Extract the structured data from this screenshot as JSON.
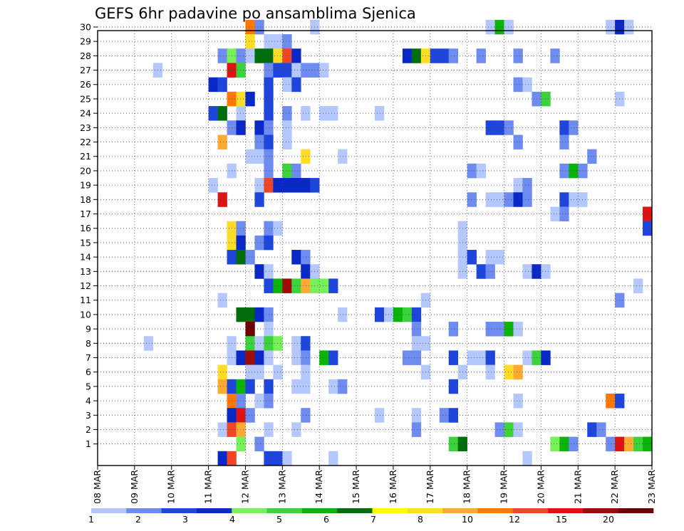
{
  "chart_data": {
    "type": "heatmap",
    "title": "GEFS 6hr padavine po ansamblima Sjenica",
    "xlabel": "",
    "ylabel": "",
    "x_ticks": [
      "08 MAR",
      "09 MAR",
      "10 MAR",
      "11 MAR",
      "12 MAR",
      "13 MAR",
      "14 MAR",
      "15 MAR",
      "16 MAR",
      "17 MAR",
      "18 MAR",
      "19 MAR",
      "20 MAR",
      "21 MAR",
      "22 MAR",
      "23 MAR"
    ],
    "x_range_days": [
      0,
      15
    ],
    "time_step_hours": 6,
    "y_ticks": [
      1,
      2,
      3,
      4,
      5,
      6,
      7,
      8,
      9,
      10,
      11,
      12,
      13,
      14,
      15,
      16,
      17,
      18,
      19,
      20,
      21,
      22,
      23,
      24,
      25,
      26,
      27,
      28,
      29,
      30
    ],
    "y_range": [
      0,
      30
    ],
    "grid": "dotted",
    "colorbar": {
      "labels": [
        "1",
        "2",
        "3",
        "4",
        "5",
        "6",
        "7",
        "8",
        "10",
        "12",
        "15",
        "20"
      ],
      "colors": [
        "#b4c8ff",
        "#6e8cf0",
        "#1e46dc",
        "#0a28c8",
        "#78f05a",
        "#3cd23c",
        "#0ab40a",
        "#006e0a",
        "#ffff00",
        "#ffdc28",
        "#ffaa32",
        "#ff7800",
        "#f04628",
        "#dc1414",
        "#a00a0a",
        "#6e0000"
      ]
    },
    "cells": [
      [
        30,
        16,
        12
      ],
      [
        30,
        17,
        2
      ],
      [
        30,
        23,
        1
      ],
      [
        30,
        42,
        1
      ],
      [
        30,
        43,
        7
      ],
      [
        30,
        44,
        1
      ],
      [
        30,
        55,
        1
      ],
      [
        30,
        56,
        4
      ],
      [
        30,
        57,
        1
      ],
      [
        29,
        16,
        10
      ],
      [
        29,
        18,
        1
      ],
      [
        29,
        19,
        1
      ],
      [
        29,
        20,
        2
      ],
      [
        28,
        13,
        2
      ],
      [
        28,
        14,
        5
      ],
      [
        28,
        15,
        2
      ],
      [
        28,
        16,
        1
      ],
      [
        28,
        17,
        8
      ],
      [
        28,
        18,
        8
      ],
      [
        28,
        19,
        10
      ],
      [
        28,
        20,
        13
      ],
      [
        28,
        21,
        4
      ],
      [
        28,
        33,
        4
      ],
      [
        28,
        34,
        8
      ],
      [
        28,
        35,
        10
      ],
      [
        28,
        36,
        3
      ],
      [
        28,
        37,
        3
      ],
      [
        28,
        38,
        2
      ],
      [
        28,
        41,
        2
      ],
      [
        28,
        45,
        2
      ],
      [
        28,
        49,
        2
      ],
      [
        27,
        6,
        1
      ],
      [
        27,
        14,
        14
      ],
      [
        27,
        15,
        6
      ],
      [
        27,
        18,
        2
      ],
      [
        27,
        19,
        3
      ],
      [
        27,
        20,
        3
      ],
      [
        27,
        21,
        1
      ],
      [
        27,
        22,
        2
      ],
      [
        27,
        23,
        2
      ],
      [
        27,
        24,
        1
      ],
      [
        26,
        12,
        4
      ],
      [
        26,
        13,
        3
      ],
      [
        26,
        18,
        3
      ],
      [
        26,
        20,
        1
      ],
      [
        26,
        21,
        3
      ],
      [
        26,
        45,
        2
      ],
      [
        26,
        46,
        1
      ],
      [
        25,
        14,
        12
      ],
      [
        25,
        15,
        10
      ],
      [
        25,
        16,
        4
      ],
      [
        25,
        18,
        3
      ],
      [
        25,
        47,
        2
      ],
      [
        25,
        48,
        6
      ],
      [
        25,
        56,
        1
      ],
      [
        24,
        12,
        3
      ],
      [
        24,
        13,
        8
      ],
      [
        24,
        15,
        1
      ],
      [
        24,
        18,
        3
      ],
      [
        24,
        20,
        2
      ],
      [
        24,
        22,
        1
      ],
      [
        24,
        24,
        1
      ],
      [
        24,
        25,
        1
      ],
      [
        24,
        30,
        1
      ],
      [
        23,
        14,
        2
      ],
      [
        23,
        15,
        4
      ],
      [
        23,
        17,
        4
      ],
      [
        23,
        18,
        2
      ],
      [
        23,
        20,
        1
      ],
      [
        23,
        42,
        3
      ],
      [
        23,
        43,
        3
      ],
      [
        23,
        44,
        2
      ],
      [
        23,
        50,
        3
      ],
      [
        23,
        51,
        2
      ],
      [
        22,
        13,
        11
      ],
      [
        22,
        17,
        2
      ],
      [
        22,
        18,
        3
      ],
      [
        22,
        20,
        1
      ],
      [
        22,
        45,
        2
      ],
      [
        22,
        50,
        2
      ],
      [
        21,
        16,
        1
      ],
      [
        21,
        17,
        1
      ],
      [
        21,
        18,
        2
      ],
      [
        21,
        22,
        10
      ],
      [
        21,
        26,
        1
      ],
      [
        21,
        53,
        2
      ],
      [
        20,
        14,
        1
      ],
      [
        20,
        18,
        2
      ],
      [
        20,
        20,
        6
      ],
      [
        20,
        21,
        2
      ],
      [
        20,
        40,
        2
      ],
      [
        20,
        41,
        1
      ],
      [
        20,
        50,
        2
      ],
      [
        20,
        51,
        7
      ],
      [
        20,
        52,
        2
      ],
      [
        19,
        12,
        1
      ],
      [
        19,
        17,
        1
      ],
      [
        19,
        18,
        13
      ],
      [
        19,
        19,
        4
      ],
      [
        19,
        20,
        4
      ],
      [
        19,
        21,
        4
      ],
      [
        19,
        22,
        4
      ],
      [
        19,
        23,
        3
      ],
      [
        19,
        45,
        1
      ],
      [
        19,
        46,
        2
      ],
      [
        18,
        13,
        14
      ],
      [
        18,
        17,
        3
      ],
      [
        18,
        40,
        2
      ],
      [
        18,
        42,
        1
      ],
      [
        18,
        43,
        1
      ],
      [
        18,
        44,
        2
      ],
      [
        18,
        45,
        4
      ],
      [
        18,
        46,
        2
      ],
      [
        18,
        50,
        3
      ],
      [
        18,
        51,
        1
      ],
      [
        18,
        52,
        1
      ],
      [
        17,
        49,
        1
      ],
      [
        17,
        50,
        2
      ],
      [
        17,
        59,
        14
      ],
      [
        16,
        14,
        10
      ],
      [
        16,
        15,
        2
      ],
      [
        16,
        18,
        2
      ],
      [
        16,
        19,
        1
      ],
      [
        16,
        39,
        1
      ],
      [
        16,
        59,
        3
      ],
      [
        15,
        14,
        10
      ],
      [
        15,
        15,
        4
      ],
      [
        15,
        17,
        2
      ],
      [
        15,
        18,
        3
      ],
      [
        15,
        39,
        1
      ],
      [
        14,
        14,
        3
      ],
      [
        14,
        15,
        8
      ],
      [
        14,
        16,
        2
      ],
      [
        14,
        21,
        4
      ],
      [
        14,
        22,
        2
      ],
      [
        14,
        39,
        1
      ],
      [
        14,
        40,
        3
      ],
      [
        14,
        42,
        1
      ],
      [
        14,
        43,
        1
      ],
      [
        13,
        17,
        4
      ],
      [
        13,
        18,
        1
      ],
      [
        13,
        22,
        4
      ],
      [
        13,
        23,
        1
      ],
      [
        13,
        39,
        1
      ],
      [
        13,
        41,
        3
      ],
      [
        13,
        42,
        2
      ],
      [
        13,
        46,
        1
      ],
      [
        13,
        47,
        4
      ],
      [
        13,
        48,
        1
      ],
      [
        12,
        18,
        3
      ],
      [
        12,
        19,
        7
      ],
      [
        12,
        20,
        15
      ],
      [
        12,
        21,
        6
      ],
      [
        12,
        22,
        11
      ],
      [
        12,
        23,
        5
      ],
      [
        12,
        24,
        5
      ],
      [
        12,
        25,
        3
      ],
      [
        12,
        58,
        1
      ],
      [
        11,
        13,
        1
      ],
      [
        11,
        35,
        1
      ],
      [
        11,
        56,
        2
      ],
      [
        10,
        15,
        8
      ],
      [
        10,
        16,
        8
      ],
      [
        10,
        17,
        4
      ],
      [
        10,
        18,
        2
      ],
      [
        10,
        26,
        1
      ],
      [
        10,
        30,
        3
      ],
      [
        10,
        31,
        1
      ],
      [
        10,
        32,
        7
      ],
      [
        10,
        33,
        6
      ],
      [
        10,
        34,
        3
      ],
      [
        9,
        16,
        16
      ],
      [
        9,
        18,
        1
      ],
      [
        9,
        34,
        2
      ],
      [
        9,
        38,
        2
      ],
      [
        9,
        42,
        2
      ],
      [
        9,
        43,
        2
      ],
      [
        9,
        44,
        7
      ],
      [
        9,
        45,
        1
      ],
      [
        8,
        5,
        1
      ],
      [
        8,
        14,
        1
      ],
      [
        8,
        16,
        6
      ],
      [
        8,
        17,
        1
      ],
      [
        8,
        18,
        6
      ],
      [
        8,
        19,
        5
      ],
      [
        8,
        21,
        1
      ],
      [
        8,
        22,
        3
      ],
      [
        8,
        34,
        1
      ],
      [
        8,
        35,
        1
      ],
      [
        7,
        14,
        1
      ],
      [
        7,
        15,
        4
      ],
      [
        7,
        16,
        15
      ],
      [
        7,
        17,
        4
      ],
      [
        7,
        18,
        1
      ],
      [
        7,
        21,
        1
      ],
      [
        7,
        22,
        2
      ],
      [
        7,
        24,
        7
      ],
      [
        7,
        25,
        3
      ],
      [
        7,
        33,
        2
      ],
      [
        7,
        34,
        2
      ],
      [
        7,
        38,
        3
      ],
      [
        7,
        40,
        1
      ],
      [
        7,
        41,
        1
      ],
      [
        7,
        42,
        3
      ],
      [
        7,
        46,
        1
      ],
      [
        7,
        47,
        6
      ],
      [
        7,
        48,
        4
      ],
      [
        6,
        13,
        10
      ],
      [
        6,
        16,
        1
      ],
      [
        6,
        17,
        1
      ],
      [
        6,
        19,
        1
      ],
      [
        6,
        22,
        1
      ],
      [
        6,
        35,
        1
      ],
      [
        6,
        39,
        1
      ],
      [
        6,
        42,
        1
      ],
      [
        6,
        44,
        10
      ],
      [
        6,
        45,
        11
      ],
      [
        5,
        13,
        11
      ],
      [
        5,
        14,
        3
      ],
      [
        5,
        15,
        7
      ],
      [
        5,
        16,
        3
      ],
      [
        5,
        18,
        3
      ],
      [
        5,
        21,
        1
      ],
      [
        5,
        22,
        1
      ],
      [
        5,
        25,
        1
      ],
      [
        5,
        26,
        2
      ],
      [
        5,
        38,
        3
      ],
      [
        4,
        14,
        12
      ],
      [
        4,
        15,
        2
      ],
      [
        4,
        17,
        1
      ],
      [
        4,
        18,
        2
      ],
      [
        4,
        45,
        1
      ],
      [
        4,
        55,
        12
      ],
      [
        4,
        56,
        3
      ],
      [
        3,
        14,
        4
      ],
      [
        3,
        15,
        14
      ],
      [
        3,
        16,
        2
      ],
      [
        3,
        22,
        2
      ],
      [
        3,
        30,
        1
      ],
      [
        3,
        34,
        1
      ],
      [
        3,
        37,
        2
      ],
      [
        3,
        38,
        3
      ],
      [
        2,
        13,
        1
      ],
      [
        2,
        14,
        13
      ],
      [
        2,
        15,
        11
      ],
      [
        2,
        18,
        1
      ],
      [
        2,
        21,
        1
      ],
      [
        2,
        34,
        2
      ],
      [
        2,
        43,
        2
      ],
      [
        2,
        44,
        6
      ],
      [
        2,
        45,
        1
      ],
      [
        2,
        53,
        3
      ],
      [
        2,
        54,
        2
      ],
      [
        1,
        15,
        5
      ],
      [
        1,
        17,
        2
      ],
      [
        1,
        38,
        6
      ],
      [
        1,
        39,
        8
      ],
      [
        1,
        49,
        5
      ],
      [
        1,
        50,
        7
      ],
      [
        1,
        51,
        2
      ],
      [
        1,
        55,
        2
      ],
      [
        1,
        56,
        14
      ],
      [
        1,
        57,
        11
      ],
      [
        1,
        58,
        6
      ],
      [
        1,
        59,
        7
      ],
      [
        0,
        13,
        4
      ],
      [
        0,
        14,
        13
      ],
      [
        0,
        18,
        3
      ],
      [
        0,
        19,
        3
      ],
      [
        0,
        20,
        1
      ],
      [
        0,
        25,
        1
      ],
      [
        0,
        46,
        1
      ]
    ]
  }
}
